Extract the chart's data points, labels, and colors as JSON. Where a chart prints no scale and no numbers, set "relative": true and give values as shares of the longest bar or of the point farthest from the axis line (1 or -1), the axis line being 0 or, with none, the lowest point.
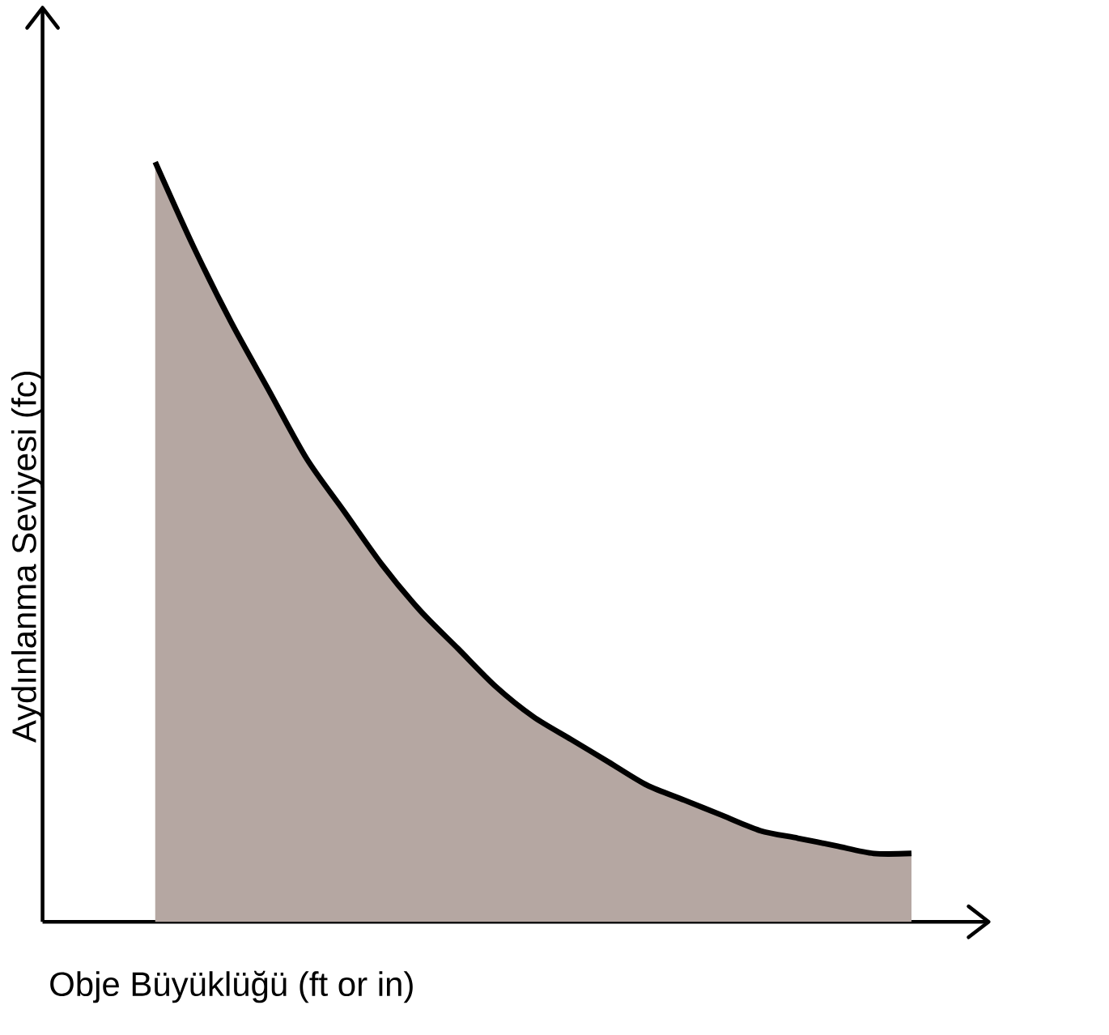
{
  "chart_data": {
    "type": "area",
    "relative": true,
    "xlabel": "Obje Büyüklüğü (ft or in)",
    "ylabel": "Aydınlanma Seviyesi (fc)",
    "categories": [
      null,
      null,
      null,
      null,
      null,
      null,
      null,
      null,
      null,
      null,
      null,
      null,
      null,
      null,
      null,
      null,
      null,
      null,
      null,
      null,
      null
    ],
    "series": [
      {
        "color": "#b5a7a2",
        "values": [
          1,
          0.89,
          0.79,
          0.7,
          0.61,
          0.54,
          0.47,
          0.41,
          0.36,
          0.31,
          0.27,
          0.24,
          0.21,
          0.18,
          0.16,
          0.14,
          0.12,
          0.11,
          0.1,
          0.09,
          0.09
        ]
      }
    ]
  }
}
